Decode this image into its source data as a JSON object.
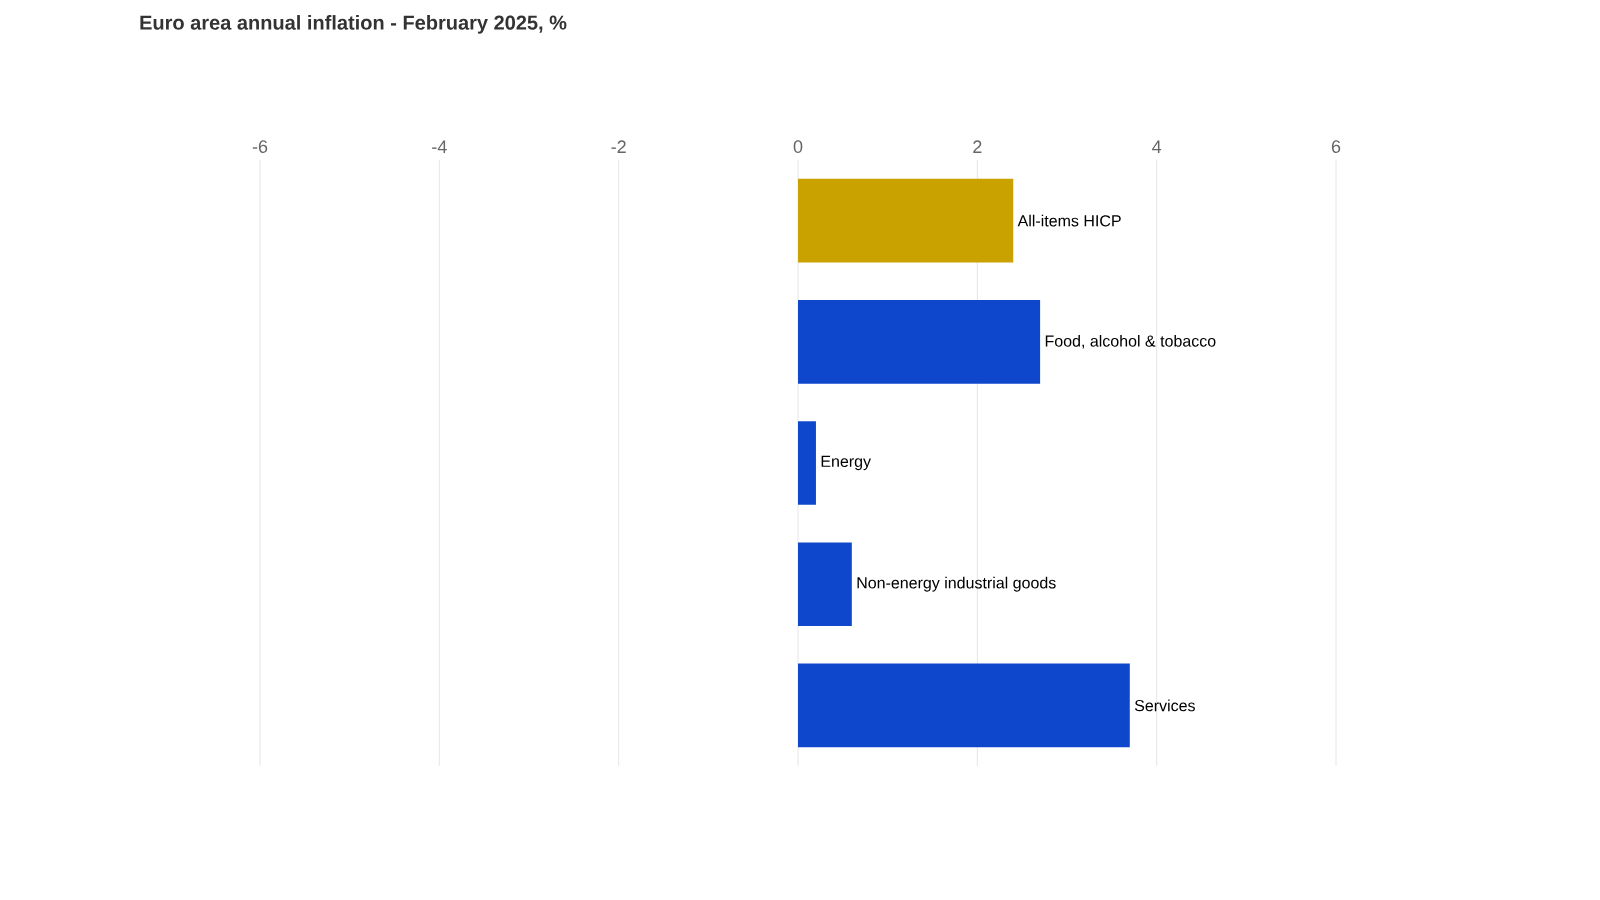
{
  "chart_data": {
    "type": "bar",
    "orientation": "horizontal",
    "title": "Euro area annual inflation - February 2025, %",
    "categories": [
      "All-items HICP",
      "Food, alcohol & tobacco",
      "Energy",
      "Non-energy industrial goods",
      "Services"
    ],
    "values": [
      2.4,
      2.7,
      0.2,
      0.6,
      3.7
    ],
    "colors": [
      "#c9a200",
      "#0e47cb",
      "#0e47cb",
      "#0e47cb",
      "#0e47cb"
    ],
    "xlim": [
      -6,
      6
    ],
    "xticks": [
      -6,
      -4,
      -2,
      0,
      2,
      4,
      6
    ],
    "grid": "x"
  }
}
